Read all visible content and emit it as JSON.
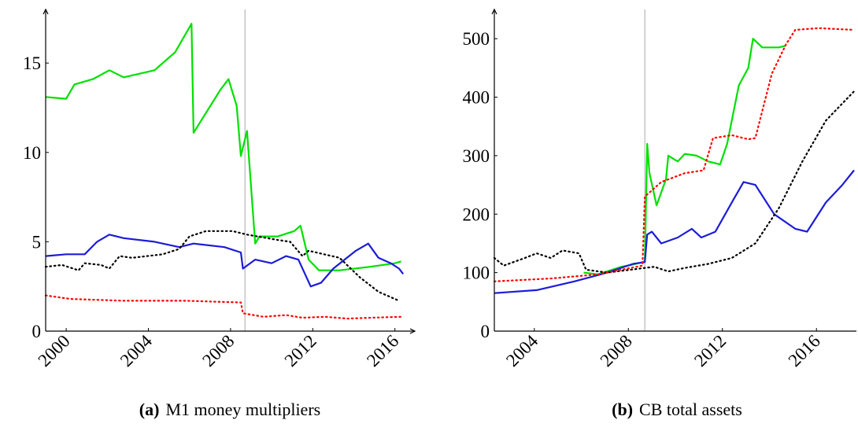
{
  "chart_data": [
    {
      "type": "line",
      "label": "(a)",
      "title": "M1 money multipliers",
      "xlim": [
        1999,
        2016.7
      ],
      "ylim": [
        0,
        18
      ],
      "xticks": [
        2000,
        2004,
        2008,
        2012,
        2016
      ],
      "yticks": [
        0,
        5,
        10,
        15
      ],
      "vline": 2008.7,
      "series": [
        {
          "color": "#00e000",
          "style": "solid",
          "x": [
            1999.0,
            2000.0,
            2000.4,
            2001.3,
            2002.1,
            2002.8,
            2004.3,
            2005.3,
            2006.1,
            2006.2,
            2007.5,
            2007.9,
            2008.3,
            2008.5,
            2008.8,
            2009.2,
            2009.4,
            2010.3,
            2011.1,
            2011.4,
            2011.8,
            2012.3,
            2013.3,
            2014.8,
            2016.0,
            2016.3
          ],
          "values": [
            13.1,
            13.0,
            13.8,
            14.1,
            14.6,
            14.2,
            14.6,
            15.6,
            17.2,
            11.1,
            13.5,
            14.1,
            12.6,
            9.8,
            11.2,
            4.9,
            5.3,
            5.3,
            5.6,
            5.9,
            4.0,
            3.4,
            3.4,
            3.6,
            3.8,
            3.9
          ]
        },
        {
          "color": "#1c1cd6",
          "style": "solid",
          "x": [
            1999.0,
            2000.0,
            2000.9,
            2001.5,
            2002.1,
            2002.8,
            2004.3,
            2005.5,
            2006.2,
            2007.7,
            2008.5,
            2008.6,
            2009.2,
            2010.0,
            2010.7,
            2011.3,
            2011.9,
            2012.4,
            2013.0,
            2014.1,
            2014.7,
            2015.2,
            2015.8,
            2016.2,
            2016.4
          ],
          "values": [
            4.2,
            4.3,
            4.3,
            5.0,
            5.4,
            5.2,
            5.0,
            4.7,
            4.9,
            4.7,
            4.4,
            3.5,
            4.0,
            3.8,
            4.2,
            4.0,
            2.5,
            2.7,
            3.5,
            4.5,
            4.9,
            4.1,
            3.8,
            3.5,
            3.2
          ]
        },
        {
          "color": "#000000",
          "style": "dotted",
          "x": [
            1999.0,
            1999.8,
            2000.6,
            2000.9,
            2001.7,
            2002.1,
            2002.6,
            2003.2,
            2004.7,
            2005.5,
            2006.0,
            2006.8,
            2008.1,
            2008.8,
            2010.3,
            2010.9,
            2011.5,
            2011.8,
            2013.3,
            2014.3,
            2015.2,
            2016.2
          ],
          "values": [
            3.6,
            3.7,
            3.4,
            3.8,
            3.7,
            3.5,
            4.2,
            4.1,
            4.3,
            4.6,
            5.3,
            5.6,
            5.6,
            5.4,
            5.1,
            5.0,
            4.2,
            4.5,
            4.1,
            3.0,
            2.2,
            1.7
          ]
        },
        {
          "color": "#ff0000",
          "style": "dotted",
          "x": [
            1999.0,
            2000.2,
            2002.8,
            2005.8,
            2008.5,
            2008.6,
            2009.6,
            2010.7,
            2011.5,
            2012.6,
            2013.7,
            2014.8,
            2016.3
          ],
          "values": [
            2.0,
            1.8,
            1.7,
            1.7,
            1.6,
            1.0,
            0.8,
            0.9,
            0.75,
            0.8,
            0.7,
            0.75,
            0.8
          ]
        }
      ]
    },
    {
      "type": "line",
      "label": "(b)",
      "title": "CB total assets",
      "xlim": [
        2002.3,
        2017.7
      ],
      "ylim": [
        0,
        550
      ],
      "xticks": [
        2004,
        2008,
        2012,
        2016
      ],
      "yticks": [
        0,
        100,
        200,
        300,
        400,
        500
      ],
      "vline": 2008.7,
      "series": [
        {
          "color": "#00e000",
          "style": "solid",
          "x": [
            2006.1,
            2006.7,
            2007.7,
            2008.1,
            2008.6,
            2008.7,
            2008.8,
            2008.9,
            2009.2,
            2009.6,
            2009.7,
            2010.1,
            2010.4,
            2010.9,
            2011.4,
            2011.9,
            2012.2,
            2012.7,
            2013.1,
            2013.3,
            2013.7,
            2014.4,
            2014.7
          ],
          "values": [
            100,
            97,
            110,
            113,
            118,
            120,
            320,
            270,
            215,
            260,
            300,
            290,
            303,
            300,
            290,
            285,
            320,
            420,
            450,
            500,
            485,
            485,
            488
          ]
        },
        {
          "color": "#1c1cd6",
          "style": "solid",
          "x": [
            2002.3,
            2004.1,
            2005.7,
            2007.1,
            2008.2,
            2008.7,
            2008.8,
            2009.0,
            2009.4,
            2010.1,
            2010.7,
            2011.1,
            2011.7,
            2012.4,
            2012.9,
            2013.4,
            2014.2,
            2015.1,
            2015.6,
            2016.4,
            2017.1,
            2017.6
          ],
          "values": [
            65,
            70,
            85,
            100,
            115,
            118,
            165,
            170,
            150,
            160,
            175,
            160,
            170,
            220,
            255,
            250,
            200,
            175,
            170,
            220,
            250,
            275
          ]
        },
        {
          "color": "#000000",
          "style": "dotted",
          "x": [
            2002.3,
            2002.7,
            2003.6,
            2004.1,
            2004.7,
            2005.2,
            2005.9,
            2006.2,
            2007.1,
            2008.1,
            2009.1,
            2009.7,
            2010.4,
            2011.4,
            2012.4,
            2013.4,
            2014.4,
            2015.4,
            2016.4,
            2017.6
          ],
          "values": [
            125,
            112,
            125,
            133,
            125,
            138,
            133,
            105,
            100,
            105,
            110,
            102,
            108,
            115,
            125,
            150,
            210,
            290,
            360,
            410
          ]
        },
        {
          "color": "#ff0000",
          "style": "dotted",
          "x": [
            2002.3,
            2004.7,
            2006.7,
            2008.6,
            2008.7,
            2009.4,
            2010.4,
            2011.2,
            2011.6,
            2012.4,
            2013.1,
            2013.4,
            2014.1,
            2014.7,
            2015.1,
            2016.1,
            2017.6
          ],
          "values": [
            85,
            90,
            97,
            112,
            230,
            255,
            270,
            275,
            330,
            335,
            328,
            330,
            440,
            490,
            515,
            518,
            515
          ]
        }
      ]
    }
  ]
}
